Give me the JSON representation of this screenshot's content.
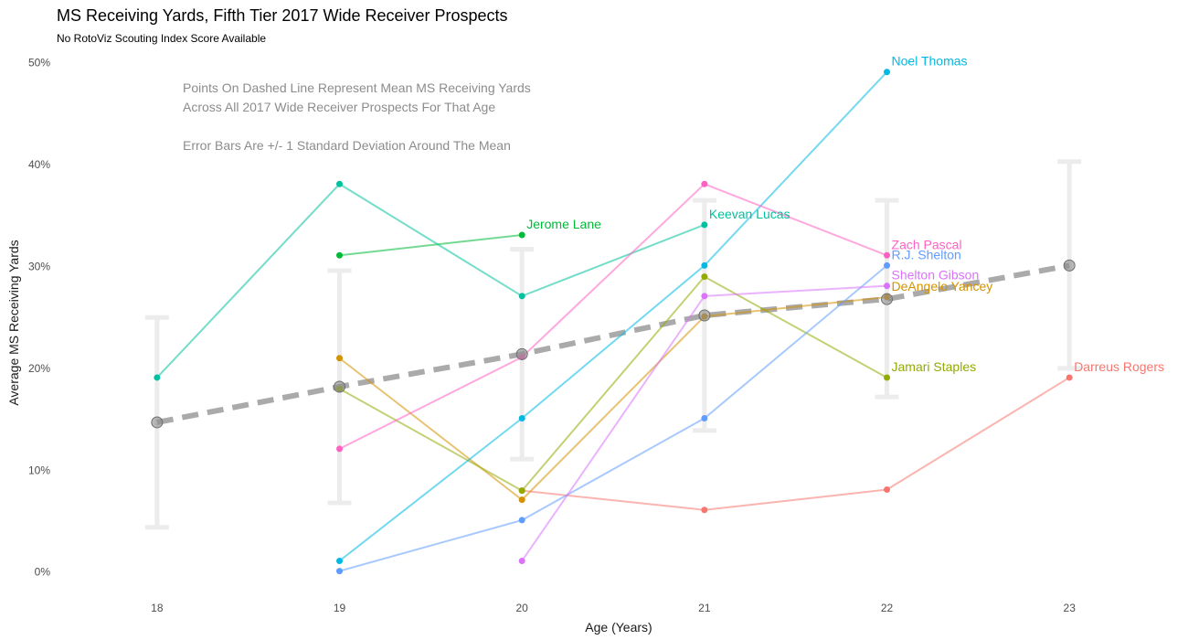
{
  "chart_data": {
    "type": "line",
    "title": "MS Receiving Yards, Fifth Tier 2017 Wide Receiver Prospects",
    "subtitle": "No RotoViz Scouting Index Score Available",
    "xlabel": "Age (Years)",
    "ylabel": "Average MS Receiving Yards",
    "xlim": [
      17.55,
      23.6
    ],
    "ylim": [
      -0.02,
      0.515
    ],
    "x_ticks": [
      18,
      19,
      20,
      21,
      22,
      23
    ],
    "x_tick_labels": [
      "18",
      "19",
      "20",
      "21",
      "22",
      "23"
    ],
    "y_ticks": [
      0,
      0.1,
      0.2,
      0.3,
      0.4,
      0.5
    ],
    "y_tick_labels": [
      "0%",
      "10%",
      "20%",
      "30%",
      "40%",
      "50%"
    ],
    "grid": false,
    "annotations": [
      "Points On Dashed Line Represent Mean MS Receiving Yards",
      "Across All 2017 Wide Receiver Prospects For That Age",
      "Error Bars Are +/- 1 Standard Deviation Around The Mean"
    ],
    "mean_series": {
      "x": [
        18,
        19,
        20,
        21,
        22,
        23
      ],
      "y": [
        0.147,
        0.182,
        0.214,
        0.252,
        0.268,
        0.301
      ],
      "error_low": [
        0.044,
        0.068,
        0.111,
        0.139,
        0.172,
        0.2
      ],
      "error_high": [
        0.25,
        0.296,
        0.317,
        0.365,
        0.365,
        0.403
      ],
      "color": "#9e9e9e"
    },
    "series": [
      {
        "name": "Darreus Rogers",
        "color": "#F8766D",
        "x": [
          20,
          21,
          22,
          23
        ],
        "y": [
          0.08,
          0.061,
          0.081,
          0.191
        ]
      },
      {
        "name": "DeAngelo Yancey",
        "color": "#D39200",
        "x": [
          19,
          20,
          21,
          22
        ],
        "y": [
          0.21,
          0.071,
          0.251,
          0.27
        ]
      },
      {
        "name": "Jamari Staples",
        "color": "#93AA00",
        "x": [
          19,
          20,
          21,
          22
        ],
        "y": [
          0.18,
          0.08,
          0.29,
          0.191
        ]
      },
      {
        "name": "Jerome Lane",
        "color": "#00BA38",
        "x": [
          19,
          20
        ],
        "y": [
          0.311,
          0.331
        ]
      },
      {
        "name": "Keevan Lucas",
        "color": "#00C19F",
        "x": [
          18,
          19,
          20,
          21
        ],
        "y": [
          0.191,
          0.381,
          0.271,
          0.341
        ]
      },
      {
        "name": "Noel Thomas",
        "color": "#00B9E3",
        "x": [
          19,
          20,
          21,
          22
        ],
        "y": [
          0.011,
          0.151,
          0.301,
          0.491
        ]
      },
      {
        "name": "R.J. Shelton",
        "color": "#619CFF",
        "x": [
          19,
          20,
          21,
          22
        ],
        "y": [
          0.001,
          0.051,
          0.151,
          0.301
        ]
      },
      {
        "name": "Shelton Gibson",
        "color": "#DB72FB",
        "x": [
          20,
          21,
          22
        ],
        "y": [
          0.011,
          0.271,
          0.281
        ]
      },
      {
        "name": "Zach Pascal",
        "color": "#FF61C3",
        "x": [
          19,
          20,
          21,
          22
        ],
        "y": [
          0.121,
          0.211,
          0.381,
          0.311
        ]
      }
    ]
  }
}
